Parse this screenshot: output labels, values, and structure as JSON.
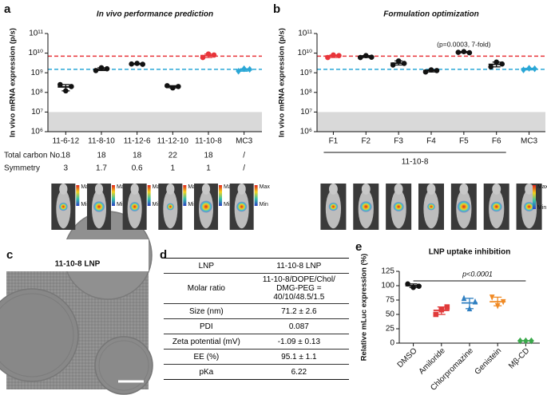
{
  "chart_data": [
    {
      "type": "dot",
      "panel": "a",
      "title": "In vivo performance prediction",
      "ylabel": "In vivo mRNA expression (p/s)",
      "log": true,
      "ylim": [
        1000000,
        100000000000
      ],
      "yticks": [
        {
          "value": 1000000,
          "label": "10⁶"
        },
        {
          "value": 10000000,
          "label": "10⁷"
        },
        {
          "value": 100000000,
          "label": "10⁸"
        },
        {
          "value": 1000000000,
          "label": "10⁹"
        },
        {
          "value": 10000000000,
          "label": "10¹⁰"
        },
        {
          "value": 100000000000,
          "label": "10¹¹"
        }
      ],
      "shaded_range": [
        1000000,
        10000000
      ],
      "reference_lines": [
        {
          "value": 7000000000,
          "color": "#e8343a"
        },
        {
          "value": 1500000000,
          "color": "#2aa7d6"
        }
      ],
      "categories": [
        "11-6-12",
        "11-8-10",
        "11-12-6",
        "11-12-10",
        "11-10-8",
        "MC3"
      ],
      "values": [
        190000000,
        1500000000,
        2800000000,
        200000000,
        7500000000,
        1400000000
      ],
      "points": [
        [
          250000000,
          120000000,
          200000000
        ],
        [
          1300000000,
          1800000000,
          1600000000
        ],
        [
          2800000000,
          3000000000,
          2700000000
        ],
        [
          220000000,
          170000000,
          200000000
        ],
        [
          6000000000,
          9000000000,
          8000000000
        ],
        [
          1200000000,
          1600000000,
          1500000000
        ]
      ],
      "colors": [
        "#111111",
        "#111111",
        "#111111",
        "#111111",
        "#e8343a",
        "#2aa7d6"
      ],
      "markers": [
        "circle",
        "circle",
        "circle",
        "circle",
        "circle",
        "diamond"
      ],
      "rows": [
        {
          "label": "Total carbon No.",
          "values": [
            "18",
            "18",
            "18",
            "22",
            "18",
            "/"
          ]
        },
        {
          "label": "Symmetry",
          "values": [
            "3",
            "1.7",
            "0.6",
            "1",
            "1",
            "/"
          ]
        }
      ],
      "colorbar": {
        "max": "Max",
        "min": "Min"
      }
    },
    {
      "type": "dot",
      "panel": "b",
      "title": "Formulation optimization",
      "ylabel": "In vivo mRNA expression (p/s)",
      "log": true,
      "ylim": [
        1000000,
        100000000000
      ],
      "yticks": [
        {
          "value": 1000000,
          "label": "10⁶"
        },
        {
          "value": 10000000,
          "label": "10⁷"
        },
        {
          "value": 100000000,
          "label": "10⁸"
        },
        {
          "value": 1000000000,
          "label": "10⁹"
        },
        {
          "value": 10000000000,
          "label": "10¹⁰"
        },
        {
          "value": 100000000000,
          "label": "10¹¹"
        }
      ],
      "shaded_range": [
        1000000,
        10000000
      ],
      "reference_lines": [
        {
          "value": 7000000000,
          "color": "#e8343a"
        },
        {
          "value": 1500000000,
          "color": "#2aa7d6"
        }
      ],
      "categories": [
        "F1",
        "F2",
        "F3",
        "F4",
        "F5",
        "F6",
        "MC3"
      ],
      "values": [
        7200000000,
        6500000000,
        3100000000,
        1300000000,
        11000000000,
        2700000000,
        1600000000
      ],
      "points": [
        [
          6000000000,
          8000000000,
          7500000000
        ],
        [
          6000000000,
          7500000000,
          6200000000
        ],
        [
          2500000000,
          4000000000,
          3000000000
        ],
        [
          1100000000,
          1400000000,
          1300000000
        ],
        [
          11000000000,
          12000000000,
          10500000000
        ],
        [
          2000000000,
          3500000000,
          2800000000
        ],
        [
          1400000000,
          1700000000,
          1600000000
        ]
      ],
      "colors": [
        "#e8343a",
        "#111111",
        "#111111",
        "#111111",
        "#111111",
        "#111111",
        "#2aa7d6"
      ],
      "markers": [
        "circle",
        "circle",
        "circle",
        "circle",
        "circle",
        "circle",
        "diamond"
      ],
      "annotation": "(p=0.0003, 7-fold)",
      "group_label": "11-10-8",
      "colorbar": {
        "max": "Max",
        "min": "Min"
      }
    },
    {
      "type": "dot",
      "panel": "e",
      "title": "LNP uptake inhibition",
      "ylabel": "Relative mLuc expression (%)",
      "log": false,
      "ylim": [
        0,
        125
      ],
      "yticks": [
        0,
        25,
        50,
        75,
        100,
        125
      ],
      "categories": [
        "DMSO",
        "Amiloride",
        "Chlorpromazine",
        "Genistein",
        "Mβ-CD"
      ],
      "values": [
        100,
        57,
        70,
        72,
        4
      ],
      "points": [
        [
          103,
          97,
          99
        ],
        [
          50,
          58,
          63
        ],
        [
          78,
          60,
          72
        ],
        [
          80,
          65,
          72
        ],
        [
          4,
          4,
          4
        ]
      ],
      "colors": [
        "#111111",
        "#e03a3a",
        "#2f7fc1",
        "#f08a24",
        "#3aa84a"
      ],
      "markers": [
        "circle",
        "square",
        "triangle",
        "triangle-down",
        "diamond"
      ],
      "annotation": "p<0.0001"
    }
  ],
  "tem": {
    "panel": "c",
    "title": "11-10-8 LNP"
  },
  "table": {
    "panel": "d",
    "rows": [
      [
        "LNP",
        "11-10-8 LNP"
      ],
      [
        "Molar ratio",
        "11-10-8/DOPE/Chol/ DMG-PEG = 40/10/48.5/1.5"
      ],
      [
        "Size (nm)",
        "71.2 ± 2.6"
      ],
      [
        "PDI",
        "0.087"
      ],
      [
        "Zeta potential (mV)",
        "-1.09 ± 0.13"
      ],
      [
        "EE (%)",
        "95.1 ± 1.1"
      ],
      [
        "pKa",
        "6.22"
      ]
    ]
  }
}
